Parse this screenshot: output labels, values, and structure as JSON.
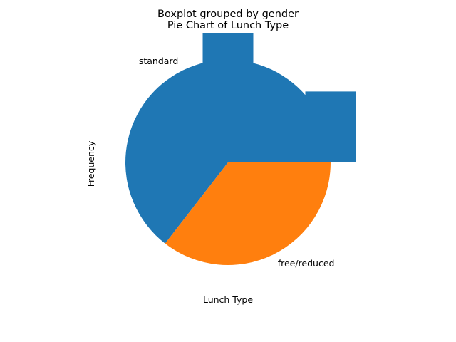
{
  "chart_data": {
    "type": "pie",
    "suptitle": "Boxplot grouped by gender",
    "title": "Pie Chart of Lunch Type",
    "xlabel": "Lunch Type",
    "ylabel": "Frequency",
    "slices": [
      {
        "label": "standard",
        "value": 64.5,
        "color": "#1f77b4"
      },
      {
        "label": "free/reduced",
        "value": 35.5,
        "color": "#ff7f0e"
      }
    ],
    "overlay_bars": [
      {
        "value": 645,
        "color": "#1f77b4"
      },
      {
        "value": 355,
        "color": "#1f77b4"
      }
    ],
    "overlay_ylim": [
      0,
      645
    ],
    "grid": false,
    "legend": "none"
  }
}
